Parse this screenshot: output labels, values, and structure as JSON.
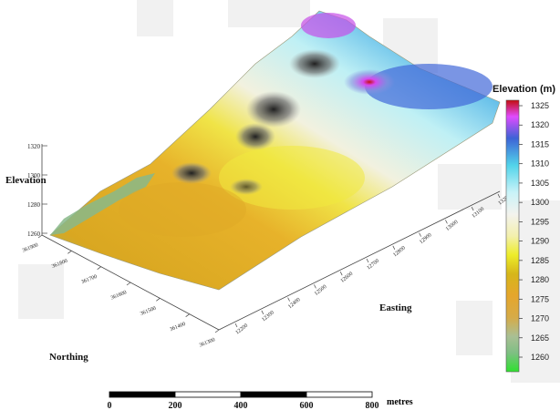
{
  "chart_data": {
    "type": "surface-3d",
    "title": "",
    "axes": {
      "easting": {
        "label": "Easting",
        "ticks": [
          "12200",
          "12300",
          "12400",
          "12500",
          "12600",
          "12700",
          "12800",
          "12900",
          "13000",
          "13100",
          "13200"
        ]
      },
      "northing": {
        "label": "Northing",
        "ticks": [
          "361900",
          "361800",
          "361700",
          "361600",
          "361500",
          "361400",
          "361300"
        ]
      },
      "elevation": {
        "label": "Elevation",
        "ticks": [
          "1320",
          "1300",
          "1280",
          "1260"
        ]
      }
    },
    "legend": {
      "title": "Elevation (m)",
      "placement": "right",
      "levels": [
        1325,
        1320,
        1315,
        1310,
        1305,
        1300,
        1295,
        1290,
        1285,
        1280,
        1275,
        1270,
        1265,
        1260
      ],
      "colors": [
        "#cc1111",
        "#d64aff",
        "#3f6ed8",
        "#57d6e8",
        "#c6f3f7",
        "#f2f3f0",
        "#f4f0b8",
        "#ecec34",
        "#d3b41a",
        "#e4a62a",
        "#d7a83a",
        "#b8c18a",
        "#87b98a",
        "#33d833"
      ]
    },
    "scale_bar": {
      "ticks": [
        "0",
        "200",
        "400",
        "600",
        "800"
      ],
      "unit": "metres"
    }
  }
}
